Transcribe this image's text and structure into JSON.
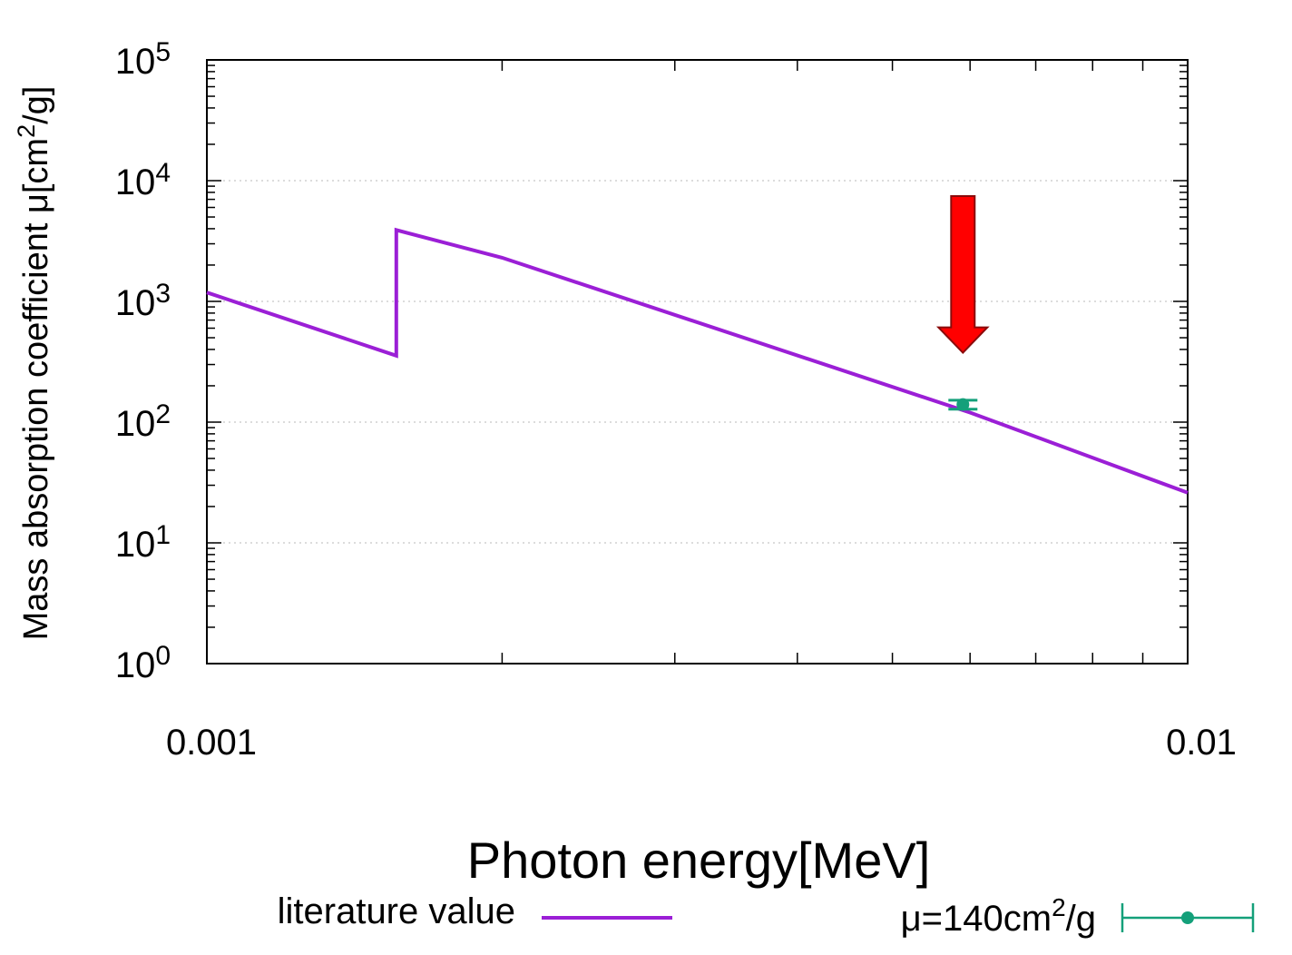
{
  "chart_data": {
    "type": "line",
    "xlabel": "Photon energy[MeV]",
    "ylabel": {
      "before": "Mass absorption coefficient μ[cm",
      "sup": "2",
      "after": "/g]"
    },
    "x_scale": "log",
    "y_scale": "log",
    "xlim": [
      0.001,
      0.01
    ],
    "ylim": [
      1,
      100000
    ],
    "x_ticks": [
      {
        "value": 0.001,
        "label": "0.001"
      },
      {
        "value": 0.01,
        "label": "0.01"
      }
    ],
    "y_ticks": [
      {
        "value": 1,
        "base": "10",
        "exp": "0"
      },
      {
        "value": 10,
        "base": "10",
        "exp": "1"
      },
      {
        "value": 100,
        "base": "10",
        "exp": "2"
      },
      {
        "value": 1000,
        "base": "10",
        "exp": "3"
      },
      {
        "value": 10000,
        "base": "10",
        "exp": "4"
      },
      {
        "value": 100000,
        "base": "10",
        "exp": "5"
      }
    ],
    "grid": {
      "major_y": true,
      "style": "dotted"
    },
    "series": [
      {
        "name": "literature value",
        "kind": "line",
        "color": "#9B1FD6",
        "x": [
          0.001,
          0.00156,
          0.00156,
          0.002,
          0.006,
          0.01
        ],
        "y": [
          1185,
          355,
          3900,
          2300,
          120,
          26
        ]
      },
      {
        "name": "μ=140cm2/g",
        "name_parts": {
          "before": "μ=140cm",
          "sup": "2",
          "after": "/g"
        },
        "kind": "errorbar",
        "color": "#14A07A",
        "x": [
          0.0059
        ],
        "y": [
          140
        ],
        "y_err": [
          [
            128
          ],
          [
            152
          ]
        ]
      }
    ],
    "annotations": [
      {
        "type": "arrow",
        "color": "#FF0000",
        "points_to": {
          "x": 0.0059,
          "y": 140
        }
      }
    ],
    "legend": {
      "position": "bottom"
    }
  }
}
